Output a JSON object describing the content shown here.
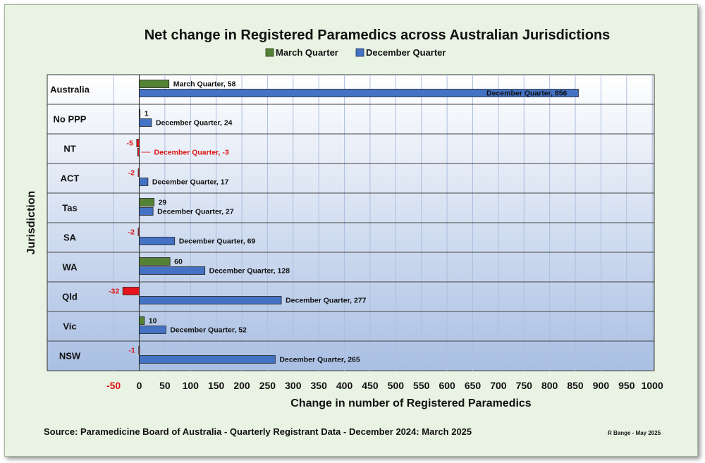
{
  "chart_data": {
    "type": "bar",
    "orientation": "horizontal",
    "title": "Net change in Registered Paramedics across Australian Jurisdictions",
    "xlabel": "Change in number  of  Registered  Paramedics",
    "ylabel": "Jurisdiction",
    "xlim": [
      -50,
      1000
    ],
    "xticks": [
      -50,
      0,
      50,
      100,
      150,
      200,
      250,
      300,
      350,
      400,
      450,
      500,
      550,
      600,
      650,
      700,
      750,
      800,
      850,
      900,
      950,
      1000
    ],
    "grid": true,
    "legend_position": "top",
    "categories": [
      "Australia",
      "No PPP",
      "NT",
      "ACT",
      "Tas",
      "SA",
      "WA",
      "Qld",
      "Vic",
      "NSW"
    ],
    "series": [
      {
        "name": "March Quarter",
        "color": "#548235",
        "negative_color": "#e8141b",
        "values": [
          58,
          1,
          -5,
          -2,
          29,
          -2,
          60,
          -32,
          10,
          -1
        ],
        "labels": [
          "March Quarter, 58",
          "1",
          "-5",
          "-2",
          "29",
          "-2",
          "60",
          "-32",
          "10",
          "-1"
        ]
      },
      {
        "name": "December Quarter",
        "color": "#4472c4",
        "negative_color": "#e8141b",
        "values": [
          856,
          24,
          -3,
          17,
          27,
          69,
          128,
          277,
          52,
          265
        ],
        "labels": [
          "December Quarter, 856",
          "December Quarter, 24",
          "December Quarter, -3",
          "December Quarter, 17",
          "December Quarter, 27",
          "December Quarter,  69",
          "December Quarter,  128",
          "December Quarter,  277",
          "December Quarter,  52",
          "December Quarter,  265"
        ]
      }
    ]
  },
  "footer": {
    "source": "Source: Paramedicine Board of Australia - Quarterly Registrant Data - December 2024: March 2025",
    "credit": "R Bange - May 2025"
  }
}
